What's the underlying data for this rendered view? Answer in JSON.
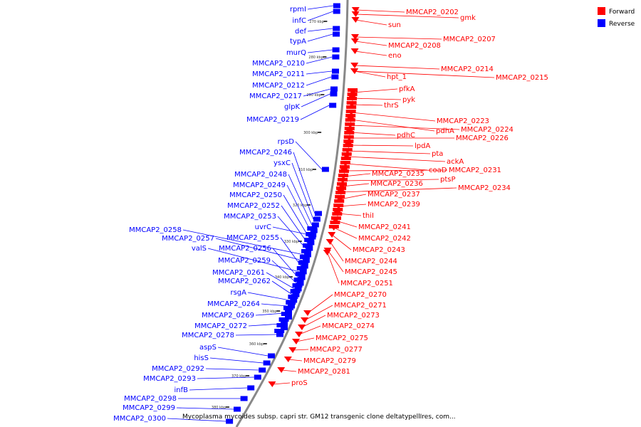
{
  "legend": {
    "forward_label": "Forward",
    "reverse_label": "Reverse"
  },
  "colors": {
    "forward": "#ff0000",
    "reverse": "#0000ff",
    "backbone": "#888888"
  },
  "caption": "Mycoplasma mycoides subsp. capri str. GM12 transgenic clone deltatypellIres, com...",
  "ticks": [
    "270 kbp",
    "280 kbp",
    "290 kbp",
    "300 kbp",
    "310 kbp",
    "320 kbp",
    "330 kbp",
    "340 kbp",
    "350 kbp",
    "360 kbp",
    "370 kbp",
    "380 kbp"
  ],
  "reverse_labels": [
    "rpmI",
    "infC",
    "def",
    "typA",
    "murQ",
    "MMCAP2_0210",
    "MMCAP2_0211",
    "MMCAP2_0212",
    "MMCAP2_0217",
    "glpK",
    "MMCAP2_0219",
    "rpsD",
    "MMCAP2_0246",
    "ysxC",
    "MMCAP2_0248",
    "MMCAP2_0249",
    "MMCAP2_0250",
    "MMCAP2_0252",
    "MMCAP2_0253",
    "uvrC",
    "MMCAP2_0258",
    "MMCAP2_0257",
    "MMCAP2_0255",
    "valS",
    "MMCAP2_0256",
    "MMCAP2_0259",
    "MMCAP2_0261",
    "MMCAP2_0262",
    "rsgA",
    "MMCAP2_0264",
    "MMCAP2_0269",
    "MMCAP2_0272",
    "MMCAP2_0278",
    "aspS",
    "hisS",
    "MMCAP2_0292",
    "MMCAP2_0293",
    "infB",
    "MMCAP2_0298",
    "MMCAP2_0299",
    "MMCAP2_0300"
  ],
  "forward_labels": [
    "MMCAP2_0202",
    "gmk",
    "sun",
    "MMCAP2_0207",
    "MMCAP2_0208",
    "eno",
    "MMCAP2_0214",
    "hpt_1",
    "MMCAP2_0215",
    "pfkA",
    "pyk",
    "thrS",
    "MMCAP2_0223",
    "pdhA",
    "MMCAP2_0224",
    "pdhC",
    "MMCAP2_0226",
    "lpdA",
    "pta",
    "ackA",
    "coaD",
    "MMCAP2_0231",
    "MMCAP2_0235",
    "ptsP",
    "MMCAP2_0236",
    "MMCAP2_0234",
    "MMCAP2_0237",
    "MMCAP2_0239",
    "thiI",
    "MMCAP2_0241",
    "MMCAP2_0242",
    "MMCAP2_0243",
    "MMCAP2_0244",
    "MMCAP2_0245",
    "MMCAP2_0251",
    "MMCAP2_0270",
    "MMCAP2_0271",
    "MMCAP2_0273",
    "MMCAP2_0274",
    "MMCAP2_0275",
    "MMCAP2_0277",
    "MMCAP2_0279",
    "MMCAP2_0281",
    "proS"
  ]
}
